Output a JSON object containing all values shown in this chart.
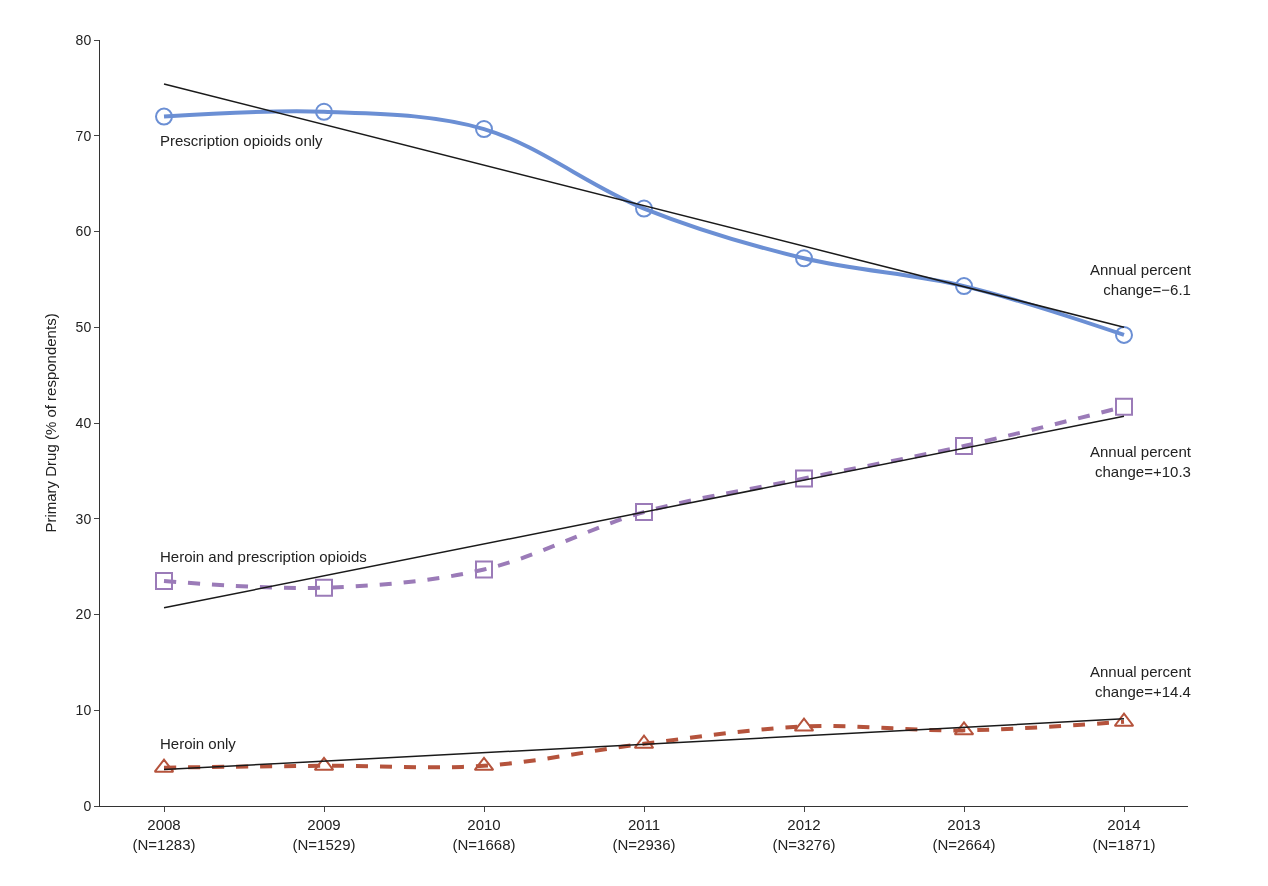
{
  "chart_data": {
    "type": "line",
    "ylabel": "Primary Drug (% of respondents)",
    "categories": [
      "2008\n(N=1283)",
      "2009\n(N=1529)",
      "2010\n(N=1668)",
      "2011\n(N=2936)",
      "2012\n(N=3276)",
      "2013\n(N=2664)",
      "2014\n(N=1871)"
    ],
    "series": [
      {
        "name": "Prescription opioids only",
        "color": "#6b8fd4",
        "marker": "circle",
        "line_style": "solid",
        "values": [
          72.0,
          72.5,
          70.7,
          62.4,
          57.2,
          54.3,
          49.2
        ]
      },
      {
        "name": "Heroin and prescription opioids",
        "color": "#9b7bb8",
        "marker": "square",
        "line_style": "dashed",
        "values": [
          23.5,
          22.8,
          24.7,
          30.7,
          34.2,
          37.6,
          41.7
        ]
      },
      {
        "name": "Heroin only",
        "color": "#b5533c",
        "marker": "triangle",
        "line_style": "dashed",
        "values": [
          4.0,
          4.2,
          4.2,
          6.5,
          8.3,
          7.9,
          8.8
        ]
      },
      {
        "type": "line",
        "color": "#1a1a1a",
        "marker": "none",
        "line_style": "solid",
        "x": [
          "2008\n(N=1283)",
          "2014\n(N=1871)"
        ],
        "values": [
          75.4,
          50.0
        ]
      },
      {
        "type": "line",
        "color": "#1a1a1a",
        "marker": "none",
        "line_style": "solid",
        "x": [
          "2008\n(N=1283)",
          "2014\n(N=1871)"
        ],
        "values": [
          20.7,
          40.7
        ]
      },
      {
        "type": "line",
        "color": "#1a1a1a",
        "marker": "none",
        "line_style": "solid",
        "x": [
          "2008\n(N=1283)",
          "2014\n(N=1871)"
        ],
        "values": [
          3.8,
          9.1
        ]
      }
    ],
    "ylim": [
      0,
      80
    ],
    "yticks": [
      0,
      10,
      20,
      30,
      40,
      50,
      60,
      70,
      80
    ],
    "legend": false,
    "annotations": [
      "Annual percent\nchange=−6.1",
      "Annual percent\nchange=+10.3",
      "Annual percent\nchange=+14.4"
    ]
  }
}
